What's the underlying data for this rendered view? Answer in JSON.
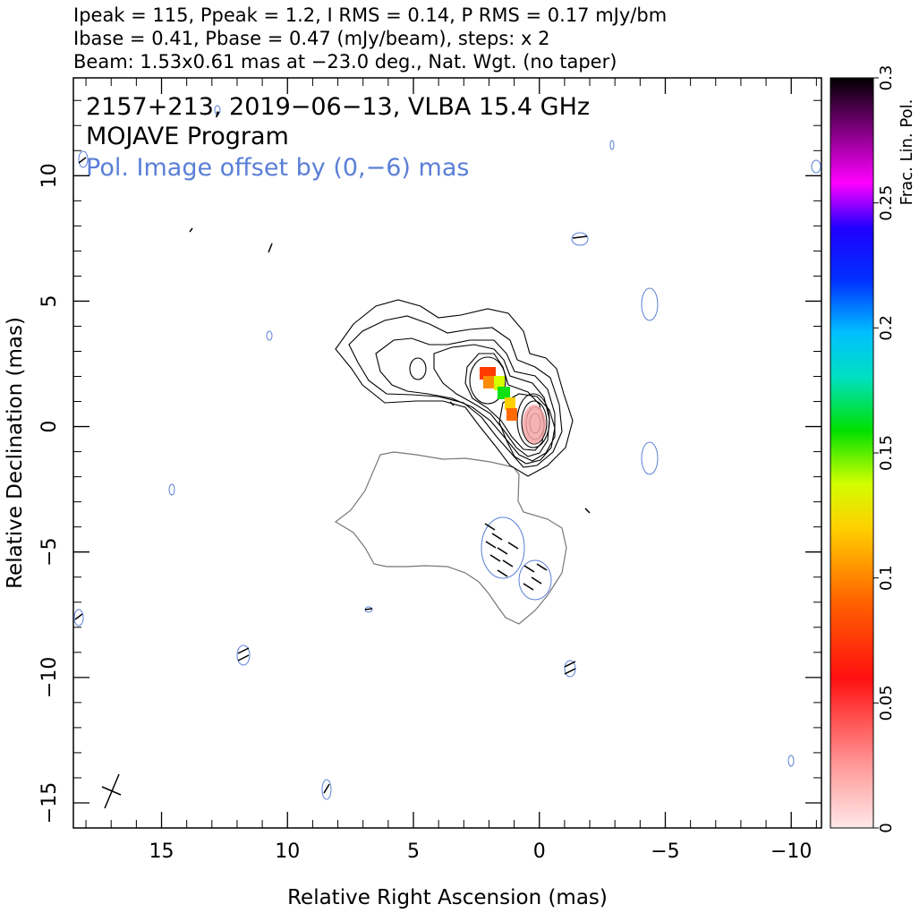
{
  "header": {
    "line1": "Ipeak = 115, Ppeak = 1.2, I RMS = 0.14, P RMS = 0.17 mJy/bm",
    "line2": "Ibase = 0.41, Pbase = 0.47 (mJy/beam), steps: x 2",
    "line3": "Beam: 1.53x0.61 mas at −23.0 deg., Nat. Wgt. (no taper)"
  },
  "annotations": {
    "source": "2157+213, 2019−06−13, VLBA 15.4 GHz",
    "program": "MOJAVE Program",
    "offset_note": "Pol. Image offset by (0,−6) mas"
  },
  "chart_data": {
    "type": "contour",
    "title": "2157+213, 2019-06-13, VLBA 15.4 GHz",
    "xlabel": "Relative Right Ascension (mas)",
    "ylabel": "Relative Declination (mas)",
    "xlim": [
      18.5,
      -11.2
    ],
    "ylim": [
      -16,
      13.9
    ],
    "x_ticks": [
      15,
      10,
      5,
      0,
      -5,
      -10
    ],
    "x_tick_labels": [
      "15",
      "10",
      "5",
      "0",
      "−5",
      "−10"
    ],
    "y_ticks": [
      10,
      5,
      0,
      -5,
      -10,
      -15
    ],
    "y_tick_labels": [
      "10",
      "5",
      "0",
      "−5",
      "−10",
      "−15"
    ],
    "ipeak_mjy_per_beam": 115,
    "ppeak_mjy_per_beam": 1.2,
    "i_rms": 0.14,
    "p_rms": 0.17,
    "ibase": 0.41,
    "pbase": 0.47,
    "contour_step_factor": 2,
    "beam": {
      "major_mas": 1.53,
      "minor_mas": 0.61,
      "pa_deg": -23.0
    },
    "weighting": "Nat. Wgt. (no taper)",
    "pol_image_offset_mas": [
      0,
      -6
    ],
    "core_position_mas": [
      0,
      0
    ],
    "colorbar": {
      "label": "Frac. Lin. Pol.",
      "range": [
        0,
        0.3
      ],
      "ticks": [
        0,
        0.05,
        0.1,
        0.15,
        0.2,
        0.25,
        0.3
      ],
      "tick_labels": [
        "0",
        "0.05",
        "0.1",
        "0.15",
        "0.2",
        "0.25",
        "0.3"
      ]
    },
    "colors": {
      "stokes_i_contours": "#000000",
      "pol_contours": "#777777",
      "noise_contours": "#5a7fd6",
      "annotation_blue": "#5a7fd6"
    }
  }
}
